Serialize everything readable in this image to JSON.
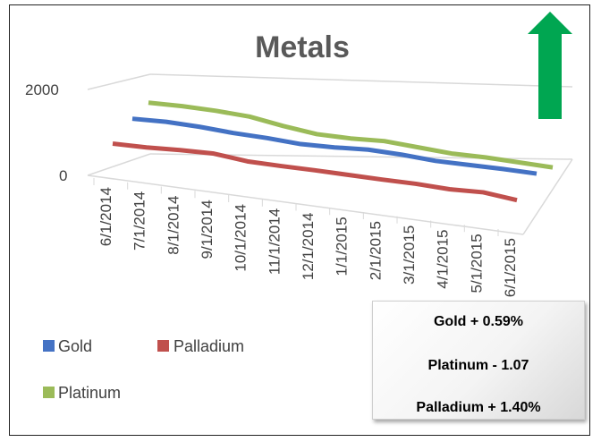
{
  "chart_data": {
    "type": "line",
    "title": "Metals",
    "categories": [
      "6/1/2014",
      "7/1/2014",
      "8/1/2014",
      "9/1/2014",
      "10/1/2014",
      "11/1/2014",
      "12/1/2014",
      "1/1/2015",
      "2/1/2015",
      "3/1/2015",
      "4/1/2015",
      "5/1/2015",
      "6/1/2015"
    ],
    "y_ticks": [
      "2000",
      "0"
    ],
    "ylim": [
      0,
      2000
    ],
    "series": [
      {
        "name": "Gold",
        "color": "#4472C4",
        "values": [
          1280,
          1310,
          1290,
          1240,
          1220,
          1175,
          1200,
          1250,
          1230,
          1180,
          1185,
          1190,
          1180
        ]
      },
      {
        "name": "Palladium",
        "color": "#C0504D",
        "values": [
          830,
          840,
          880,
          900,
          810,
          800,
          800,
          790,
          780,
          780,
          750,
          780,
          690
        ]
      },
      {
        "name": "Platinum",
        "color": "#9BBB59",
        "values": [
          1460,
          1480,
          1470,
          1430,
          1300,
          1200,
          1200,
          1240,
          1190,
          1140,
          1150,
          1130,
          1110
        ]
      }
    ],
    "grid": true,
    "legend_position": "bottom-left",
    "arrow": {
      "direction": "up",
      "color": "#00A651"
    }
  },
  "info_box": {
    "lines": [
      "Gold  +  0.59%",
      "Platinum  - 1.07",
      "Palladium  + 1.40%"
    ]
  }
}
